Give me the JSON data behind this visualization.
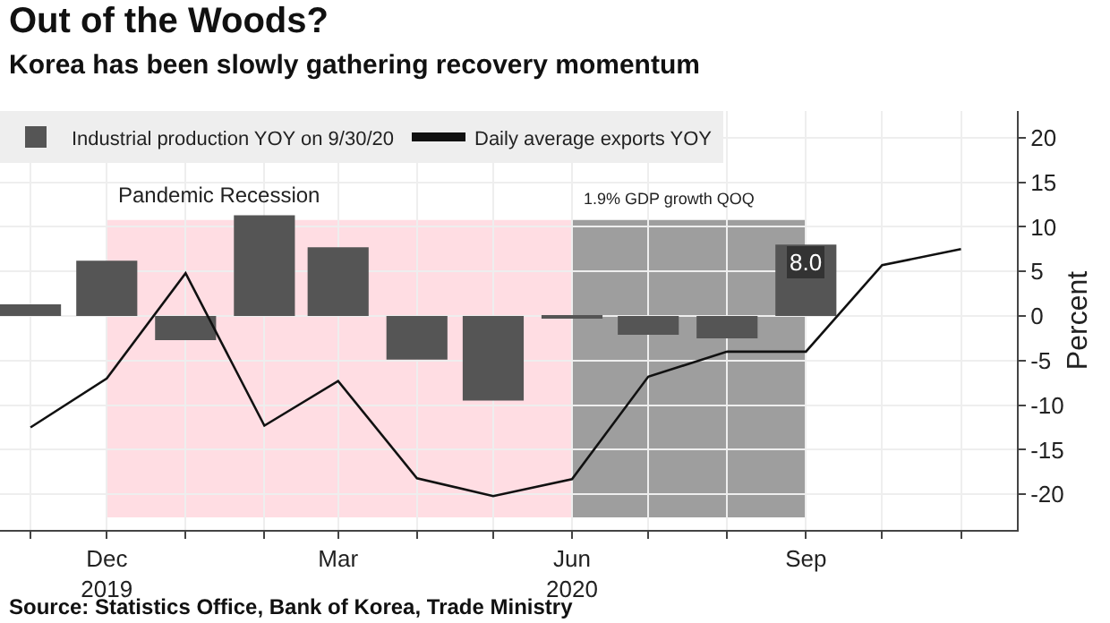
{
  "chart_data": {
    "type": "bar",
    "title": "Out of the Woods?",
    "subtitle": "Korea has been slowly gathering recovery momentum",
    "ylabel": "Percent",
    "series": [
      {
        "name": "Industrial production YOY on 9/30/20",
        "color": "#555555",
        "x": [
          "2019-11",
          "2019-12",
          "2020-01",
          "2020-02",
          "2020-03",
          "2020-04",
          "2020-05",
          "2020-06",
          "2020-07",
          "2020-08",
          "2020-09"
        ],
        "values": [
          1.3,
          6.2,
          -2.7,
          11.3,
          7.7,
          -4.9,
          -9.5,
          -0.3,
          -2.1,
          -2.5,
          8.0
        ],
        "value_labels": [
          null,
          null,
          null,
          null,
          null,
          null,
          null,
          null,
          null,
          null,
          "8.0"
        ]
      },
      {
        "name": "Daily average exports YOY",
        "type": "line",
        "color": "#111111",
        "x": [
          "2019-11",
          "2019-12",
          "2020-01",
          "2020-02",
          "2020-03",
          "2020-04",
          "2020-05",
          "2020-06",
          "2020-07",
          "2020-08",
          "2020-09",
          "2020-10",
          "2020-11"
        ],
        "values": [
          -12.5,
          -7,
          4.8,
          -12.3,
          -7.3,
          -18.2,
          -20.2,
          -18.3,
          -6.8,
          -4,
          -4,
          5.7,
          7.5
        ]
      }
    ],
    "xlim": [
      "2019-10-20",
      "2020-11-23"
    ],
    "xticks": [
      {
        "value": "2019-11",
        "label": null
      },
      {
        "value": "2019-12",
        "label": "Dec\n2019"
      },
      {
        "value": "2020-01",
        "label": null
      },
      {
        "value": "2020-02",
        "label": null
      },
      {
        "value": "2020-03",
        "label": "Mar"
      },
      {
        "value": "2020-04",
        "label": null
      },
      {
        "value": "2020-05",
        "label": null
      },
      {
        "value": "2020-06",
        "label": "Jun\n2020"
      },
      {
        "value": "2020-07",
        "label": null
      },
      {
        "value": "2020-08",
        "label": null
      },
      {
        "value": "2020-09",
        "label": "Sep"
      },
      {
        "value": "2020-10",
        "label": null
      },
      {
        "value": "2020-11",
        "label": null
      }
    ],
    "ylim": [
      -24,
      23
    ],
    "yticks": [
      -20,
      -15,
      -10,
      -5,
      0,
      5,
      10,
      15,
      20
    ],
    "bands": [
      {
        "axis": "x",
        "from": "2019-12",
        "to": "2020-06",
        "label": "Pandemic Recession",
        "color": "#ffdde3"
      },
      {
        "axis": "x",
        "from": "2020-06",
        "to": "2020-09",
        "label": "1.9% GDP growth QOQ",
        "color": "#9e9e9e"
      }
    ],
    "annotations": [
      "Source: Statistics Office, Bank of Korea, Trade Ministry"
    ],
    "grid": true,
    "legend": "top left"
  }
}
